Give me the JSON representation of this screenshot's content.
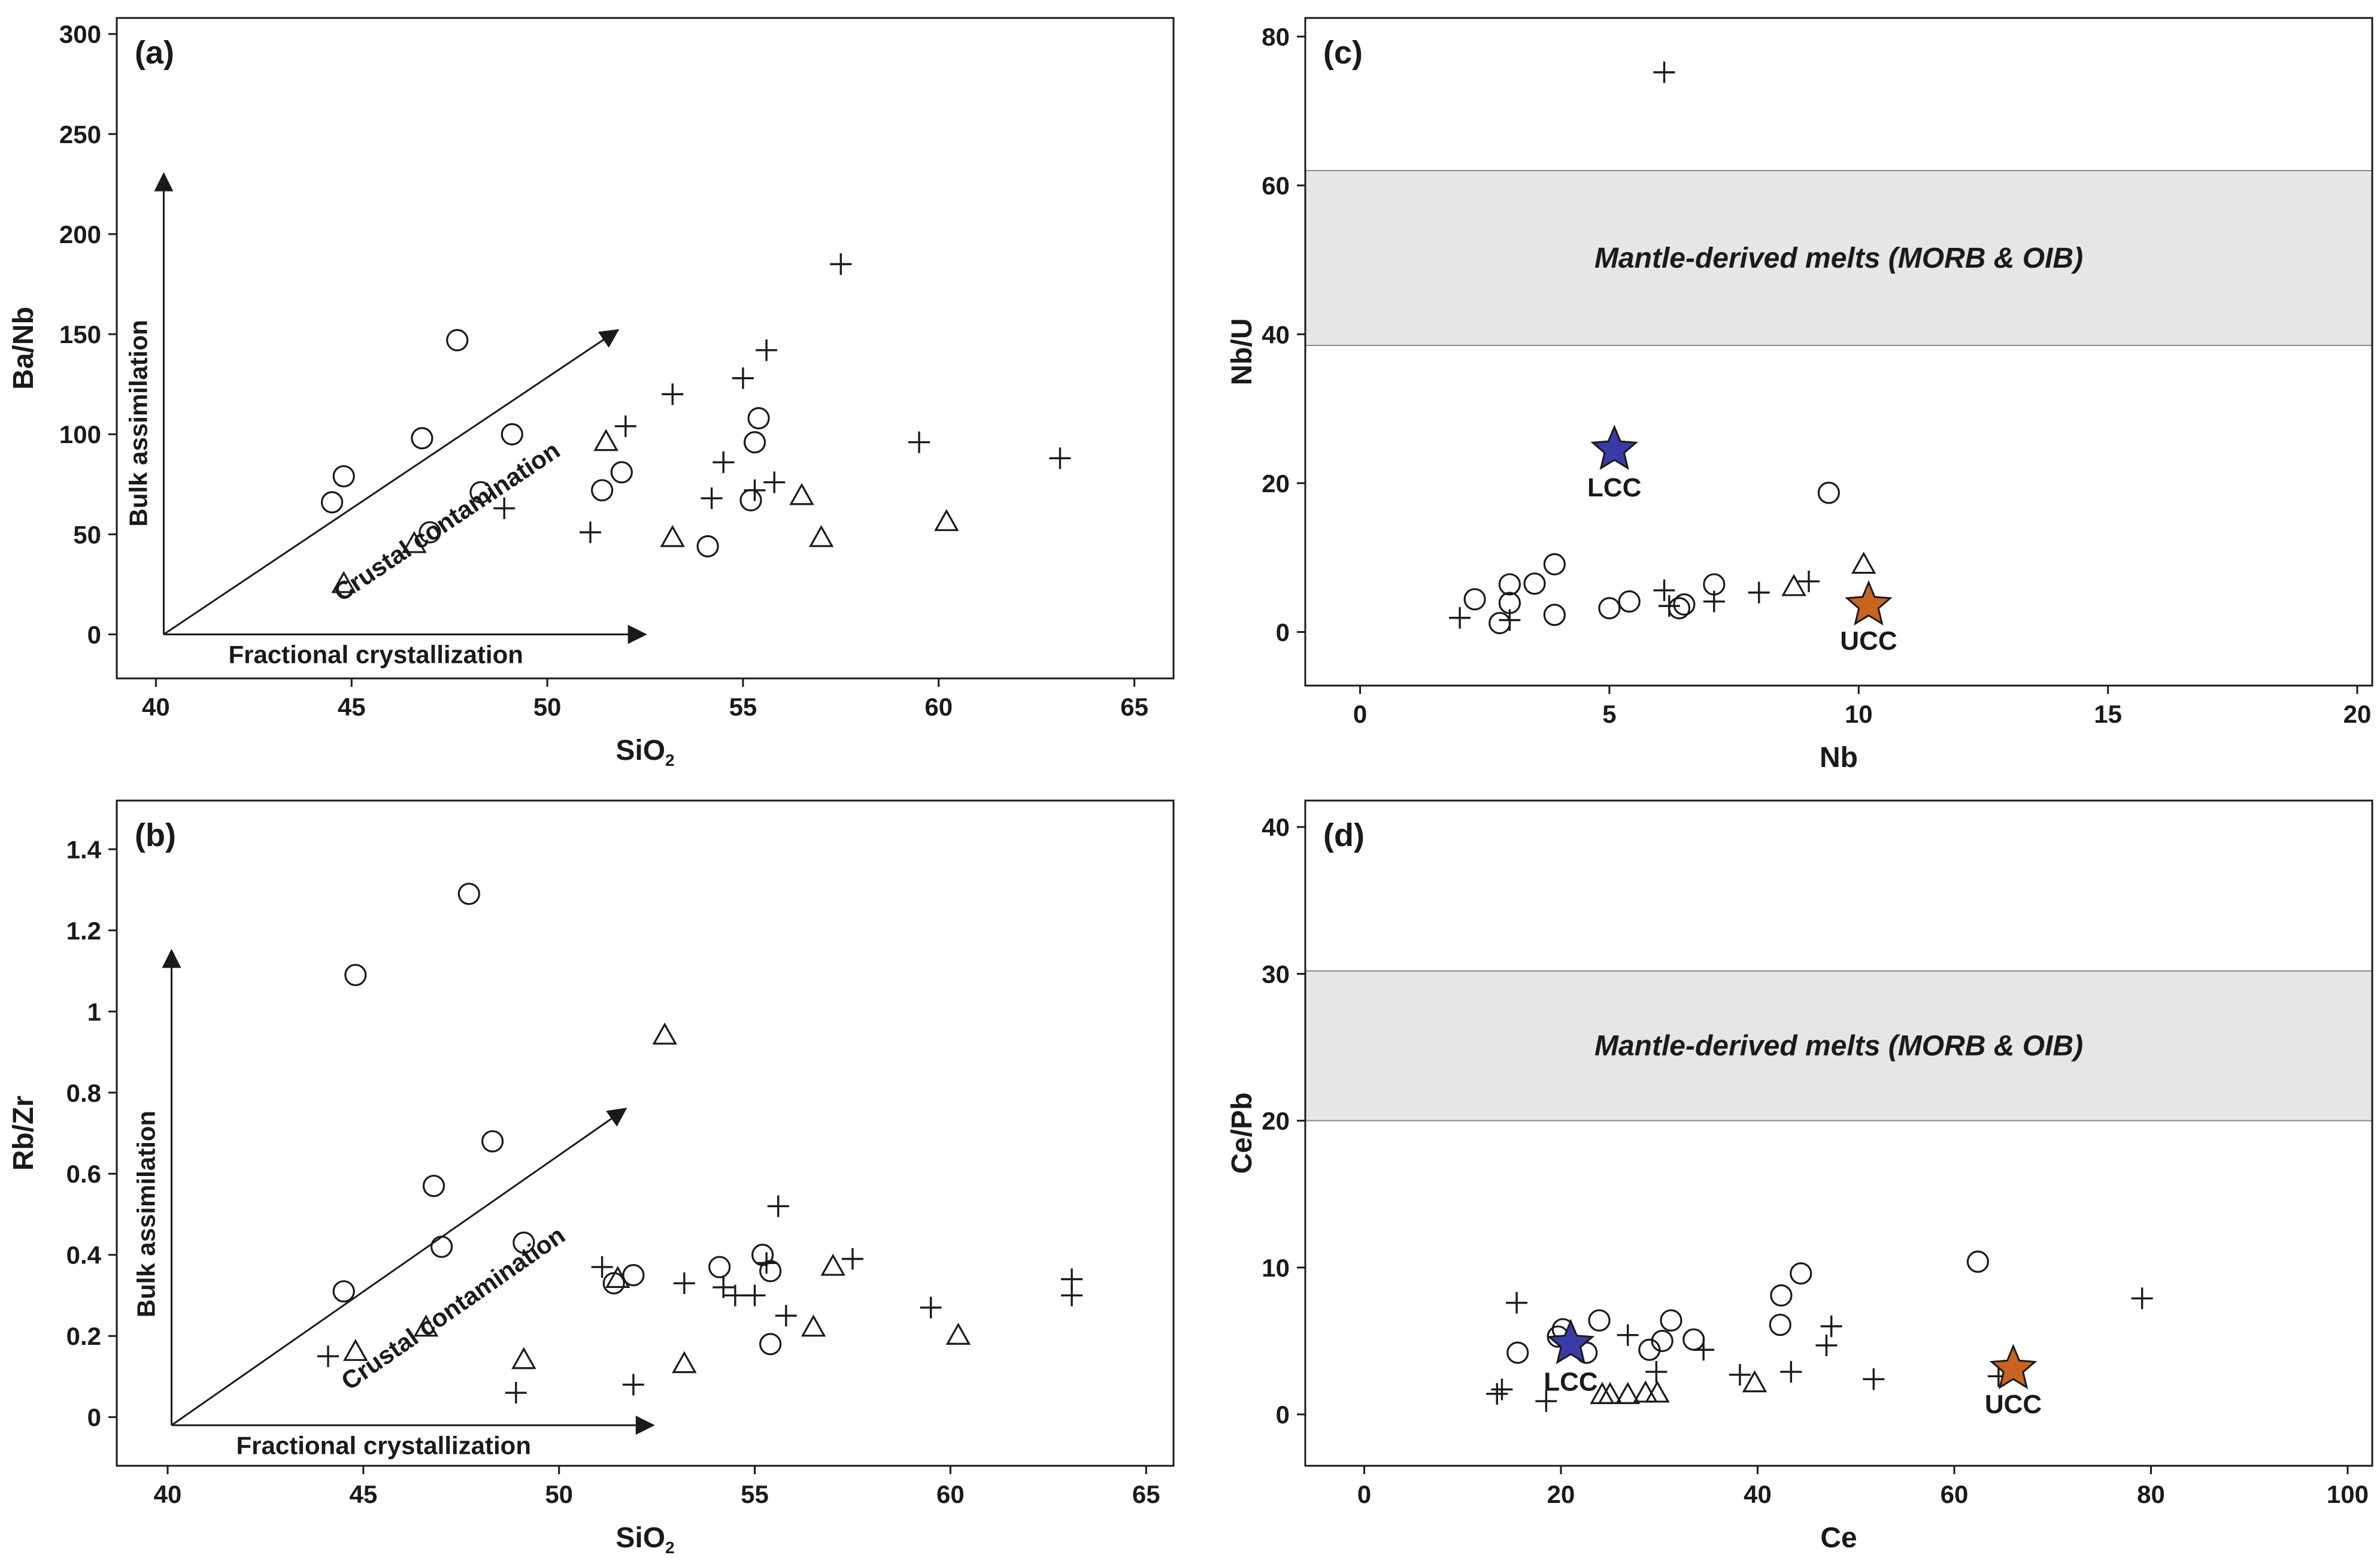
{
  "figure_colors": {
    "line": "#1a1a1a",
    "band": "#e6e6e6",
    "lcc": "#3b3ba8",
    "ucc": "#c8641e"
  },
  "chart_data": [
    {
      "id": "a",
      "type": "scatter",
      "panel_label": "(a)",
      "xlabel": "SiO",
      "xlabel_sub": "2",
      "ylabel": "Ba/Nb",
      "xlim": [
        39,
        66
      ],
      "ylim": [
        -22,
        308
      ],
      "xticks": [
        40,
        45,
        50,
        55,
        60,
        65
      ],
      "yticks": [
        0,
        50,
        100,
        150,
        200,
        250,
        300
      ],
      "arrows": {
        "origin": [
          40.2,
          0
        ],
        "fractional_tip": [
          52.5,
          0
        ],
        "bulk_tip": [
          40.2,
          230
        ],
        "crustal_tip": [
          51.8,
          152
        ],
        "fractional_label": "Fractional crystallization",
        "bulk_label": "Bulk assimilation",
        "crustal_label": "Crustal contamination"
      },
      "series": [
        {
          "name": "circle",
          "marker": "circle",
          "points": [
            [
              44.5,
              66
            ],
            [
              44.8,
              79
            ],
            [
              46.8,
              98
            ],
            [
              47.0,
              51
            ],
            [
              47.7,
              147
            ],
            [
              48.3,
              71
            ],
            [
              49.1,
              100
            ],
            [
              51.4,
              72
            ],
            [
              51.9,
              81
            ],
            [
              54.1,
              44
            ],
            [
              55.2,
              67
            ],
            [
              55.3,
              96
            ],
            [
              55.4,
              108
            ]
          ]
        },
        {
          "name": "plus",
          "marker": "plus",
          "points": [
            [
              48.9,
              63
            ],
            [
              51.1,
              51
            ],
            [
              52.0,
              104
            ],
            [
              53.2,
              120
            ],
            [
              54.2,
              68
            ],
            [
              54.5,
              86
            ],
            [
              55.0,
              128
            ],
            [
              55.3,
              72
            ],
            [
              55.6,
              142
            ],
            [
              55.8,
              76
            ],
            [
              57.5,
              185
            ],
            [
              59.5,
              96
            ],
            [
              63.1,
              88
            ]
          ]
        },
        {
          "name": "triangle",
          "marker": "triangle",
          "points": [
            [
              44.8,
              25
            ],
            [
              46.6,
              45
            ],
            [
              51.5,
              96
            ],
            [
              53.2,
              48
            ],
            [
              56.5,
              69
            ],
            [
              57.0,
              48
            ],
            [
              60.2,
              56
            ]
          ]
        }
      ]
    },
    {
      "id": "b",
      "type": "scatter",
      "panel_label": "(b)",
      "xlabel": "SiO",
      "xlabel_sub": "2",
      "ylabel": "Rb/Zr",
      "xlim": [
        38.7,
        65.7
      ],
      "ylim": [
        -0.12,
        1.52
      ],
      "xticks": [
        40,
        45,
        50,
        55,
        60,
        65
      ],
      "yticks": [
        0,
        0.2,
        0.4,
        0.6,
        0.8,
        1,
        1.2,
        1.4
      ],
      "ytick_labels": [
        "0",
        "0.2",
        "0.4",
        "0.6",
        "0.8",
        "1",
        "1.2",
        "1.4"
      ],
      "arrows": {
        "origin": [
          40.1,
          -0.02
        ],
        "fractional_tip": [
          52.4,
          -0.02
        ],
        "bulk_tip": [
          40.1,
          1.15
        ],
        "crustal_tip": [
          51.7,
          0.76
        ],
        "fractional_label": "Fractional crystallization",
        "bulk_label": "Bulk assimilation",
        "crustal_label": "Crustal contamination"
      },
      "series": [
        {
          "name": "circle",
          "marker": "circle",
          "points": [
            [
              44.5,
              0.31
            ],
            [
              44.8,
              1.09
            ],
            [
              46.8,
              0.57
            ],
            [
              47.0,
              0.42
            ],
            [
              47.7,
              1.29
            ],
            [
              48.3,
              0.68
            ],
            [
              49.1,
              0.43
            ],
            [
              51.4,
              0.33
            ],
            [
              51.9,
              0.35
            ],
            [
              54.1,
              0.37
            ],
            [
              55.2,
              0.4
            ],
            [
              55.4,
              0.18
            ],
            [
              55.4,
              0.36
            ]
          ]
        },
        {
          "name": "plus",
          "marker": "plus",
          "points": [
            [
              44.1,
              0.15
            ],
            [
              48.9,
              0.06
            ],
            [
              51.1,
              0.37
            ],
            [
              51.9,
              0.08
            ],
            [
              53.2,
              0.33
            ],
            [
              54.2,
              0.32
            ],
            [
              54.5,
              0.3
            ],
            [
              55.0,
              0.3
            ],
            [
              55.3,
              0.38
            ],
            [
              55.6,
              0.52
            ],
            [
              55.8,
              0.25
            ],
            [
              57.5,
              0.39
            ],
            [
              59.5,
              0.27
            ],
            [
              63.1,
              0.3
            ],
            [
              63.1,
              0.34
            ]
          ]
        },
        {
          "name": "triangle",
          "marker": "triangle",
          "points": [
            [
              44.8,
              0.16
            ],
            [
              46.6,
              0.22
            ],
            [
              49.1,
              0.14
            ],
            [
              51.5,
              0.34
            ],
            [
              52.7,
              0.94
            ],
            [
              53.2,
              0.13
            ],
            [
              56.5,
              0.22
            ],
            [
              57.0,
              0.37
            ],
            [
              60.2,
              0.2
            ]
          ]
        }
      ]
    },
    {
      "id": "c",
      "type": "scatter",
      "panel_label": "(c)",
      "xlabel": "Nb",
      "ylabel": "Nb/U",
      "xlim": [
        -1.1,
        20.3
      ],
      "ylim": [
        -7.2,
        82.5
      ],
      "xticks": [
        0,
        5,
        10,
        15,
        20
      ],
      "yticks": [
        0,
        20,
        40,
        60,
        80
      ],
      "band": {
        "y0": 38.5,
        "y1": 62,
        "label": "Mantle-derived melts (MORB & OIB)"
      },
      "references": [
        {
          "name": "LCC",
          "x": 5.1,
          "y": 24.5
        },
        {
          "name": "UCC",
          "x": 10.2,
          "y": 3.6
        }
      ],
      "series": [
        {
          "name": "circle",
          "marker": "circle",
          "points": [
            [
              2.3,
              4.4
            ],
            [
              2.8,
              1.2
            ],
            [
              3.0,
              3.9
            ],
            [
              3.0,
              6.4
            ],
            [
              3.5,
              6.5
            ],
            [
              3.9,
              2.3
            ],
            [
              3.9,
              9.1
            ],
            [
              5.0,
              3.2
            ],
            [
              5.4,
              4.1
            ],
            [
              6.4,
              3.2
            ],
            [
              6.5,
              3.7
            ],
            [
              7.1,
              6.4
            ],
            [
              9.4,
              18.7
            ]
          ]
        },
        {
          "name": "plus",
          "marker": "plus",
          "points": [
            [
              2.0,
              1.9
            ],
            [
              3.0,
              1.6
            ],
            [
              6.1,
              75.2
            ],
            [
              6.1,
              5.6
            ],
            [
              6.2,
              3.5
            ],
            [
              7.1,
              4.1
            ],
            [
              8.0,
              5.3
            ],
            [
              9.0,
              6.8
            ]
          ]
        },
        {
          "name": "triangle",
          "marker": "triangle",
          "points": [
            [
              8.7,
              6.0
            ],
            [
              10.1,
              9.0
            ]
          ]
        }
      ]
    },
    {
      "id": "d",
      "type": "scatter",
      "panel_label": "(d)",
      "xlabel": "Ce",
      "ylabel": "Ce/Pb",
      "xlim": [
        -6,
        102.5
      ],
      "ylim": [
        -3.5,
        41.8
      ],
      "xticks": [
        0,
        20,
        40,
        60,
        80,
        100
      ],
      "yticks": [
        0,
        10,
        20,
        30,
        40
      ],
      "band": {
        "y0": 20,
        "y1": 30.2,
        "label": "Mantle-derived melts (MORB & OIB)"
      },
      "references": [
        {
          "name": "LCC",
          "x": 21.0,
          "y": 4.8
        },
        {
          "name": "UCC",
          "x": 66.0,
          "y": 3.1
        }
      ],
      "series": [
        {
          "name": "circle",
          "marker": "circle",
          "points": [
            [
              15.6,
              4.2
            ],
            [
              19.7,
              5.3
            ],
            [
              20.2,
              5.8
            ],
            [
              22.6,
              4.2
            ],
            [
              23.9,
              6.4
            ],
            [
              29.0,
              4.4
            ],
            [
              30.3,
              5.0
            ],
            [
              31.2,
              6.4
            ],
            [
              33.5,
              5.1
            ],
            [
              42.3,
              6.1
            ],
            [
              42.4,
              8.1
            ],
            [
              44.4,
              9.6
            ],
            [
              62.4,
              10.4
            ]
          ]
        },
        {
          "name": "plus",
          "marker": "plus",
          "points": [
            [
              13.5,
              1.4
            ],
            [
              14.0,
              1.7
            ],
            [
              15.5,
              7.6
            ],
            [
              18.5,
              0.9
            ],
            [
              26.8,
              5.4
            ],
            [
              29.7,
              2.9
            ],
            [
              34.5,
              4.4
            ],
            [
              38.2,
              2.7
            ],
            [
              43.4,
              2.9
            ],
            [
              47.0,
              4.7
            ],
            [
              47.5,
              6.0
            ],
            [
              51.8,
              2.4
            ],
            [
              64.5,
              2.6
            ],
            [
              79.1,
              7.9
            ]
          ]
        },
        {
          "name": "triangle",
          "marker": "triangle",
          "points": [
            [
              24.2,
              1.3
            ],
            [
              25.0,
              1.3
            ],
            [
              26.8,
              1.3
            ],
            [
              28.6,
              1.4
            ],
            [
              29.8,
              1.4
            ],
            [
              39.7,
              2.1
            ]
          ]
        }
      ]
    }
  ]
}
